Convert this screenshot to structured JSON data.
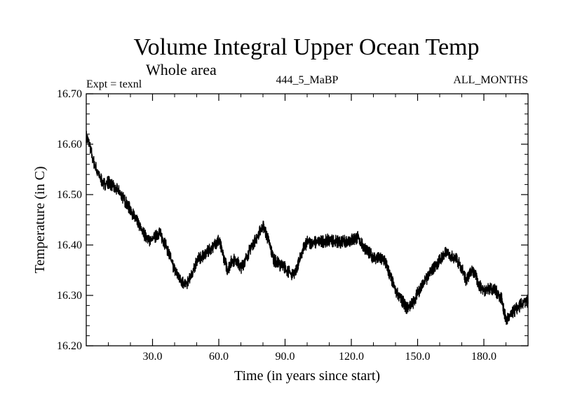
{
  "chart_data": {
    "type": "line",
    "title": "Volume Integral Upper Ocean Temp",
    "subtitle": "Whole area",
    "expt_label": "Expt = texnl",
    "run_label": "444_5_MaBP",
    "months_label": "ALL_MONTHS",
    "xlabel": "Time (in years since start)",
    "ylabel": "Temperature (in C)",
    "xlim": [
      0,
      200
    ],
    "ylim": [
      16.2,
      16.7
    ],
    "xticks": [
      30,
      60,
      90,
      120,
      150,
      180
    ],
    "xtick_labels": [
      "30.0",
      "60.0",
      "90.0",
      "120.0",
      "150.0",
      "180.0"
    ],
    "yticks": [
      16.2,
      16.3,
      16.4,
      16.5,
      16.6,
      16.7
    ],
    "ytick_labels": [
      "16.20",
      "16.30",
      "16.40",
      "16.50",
      "16.60",
      "16.70"
    ],
    "x_minor_step": 10,
    "y_minor_step": 0.02,
    "noise_amplitude": 0.008,
    "series": [
      {
        "name": "Volume Integral Upper Ocean Temp",
        "x": [
          0,
          1,
          2,
          3,
          5,
          8,
          10,
          15,
          20,
          25,
          28,
          30,
          33,
          36,
          40,
          43,
          45,
          48,
          50,
          53,
          56,
          60,
          62,
          64,
          66,
          68,
          70,
          72,
          75,
          78,
          80,
          82,
          85,
          88,
          90,
          93,
          95,
          98,
          100,
          105,
          110,
          115,
          120,
          123,
          125,
          130,
          135,
          140,
          143,
          145,
          148,
          150,
          155,
          160,
          163,
          165,
          167,
          170,
          172,
          175,
          178,
          180,
          183,
          185,
          188,
          190,
          192,
          195,
          198,
          200
        ],
        "values": [
          16.615,
          16.605,
          16.59,
          16.57,
          16.545,
          16.52,
          16.525,
          16.505,
          16.47,
          16.43,
          16.41,
          16.41,
          16.425,
          16.4,
          16.35,
          16.33,
          16.32,
          16.34,
          16.37,
          16.38,
          16.39,
          16.41,
          16.38,
          16.35,
          16.37,
          16.37,
          16.355,
          16.37,
          16.4,
          16.42,
          16.44,
          16.415,
          16.37,
          16.36,
          16.355,
          16.34,
          16.35,
          16.39,
          16.405,
          16.405,
          16.41,
          16.405,
          16.41,
          16.415,
          16.4,
          16.375,
          16.37,
          16.31,
          16.29,
          16.275,
          16.285,
          16.305,
          16.34,
          16.37,
          16.385,
          16.38,
          16.375,
          16.355,
          16.33,
          16.35,
          16.32,
          16.31,
          16.315,
          16.31,
          16.295,
          16.25,
          16.26,
          16.275,
          16.285,
          16.29
        ]
      }
    ]
  }
}
